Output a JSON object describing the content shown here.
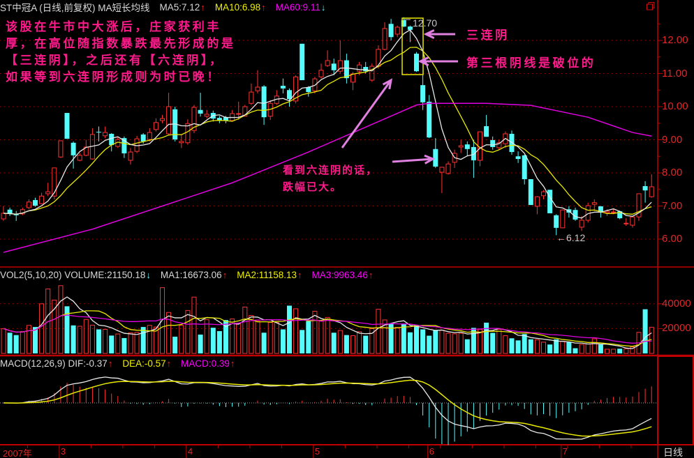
{
  "header": {
    "title": "ST中冠A (日线,前复权) MA短长均线",
    "ma5": "MA5:7.12",
    "ma5_arrow": "↑",
    "ma10": "MA10:6.98",
    "ma10_arrow": "↑",
    "ma60": "MA60:9.11",
    "ma60_arrow": "↓"
  },
  "volume_header": {
    "title": "VOL2(5,10,20) VOLUME:21150.18",
    "title_arrow": "↓",
    "ma1": "MA1:16673.06",
    "ma1_arrow": "↑",
    "ma2": "MA2:11158.13",
    "ma2_arrow": "↑",
    "ma3": "MA3:9963.46",
    "ma3_arrow": "↑"
  },
  "macd_header": {
    "title": "MACD(12,26,9) DIF:-0.37",
    "title_arrow": "↑",
    "dea": "DEA:-0.57",
    "dea_arrow": "↑",
    "macd": "MACD:0.39",
    "macd_arrow": "↑"
  },
  "annotations": {
    "intro": [
      "该股在牛市中大涨后，庄家获利丰",
      "厚，在高位随指数暴跌最先形成的是",
      "【三连阴】，之后还有【六连阴】，",
      "如果等到六连阴形成则为时已晚！"
    ],
    "three_black": "三连阴",
    "third_break": "第三根阴线是破位的",
    "six_black": [
      "看到六连阴的话，",
      "跌幅已大。"
    ],
    "high_marker": "12.70",
    "low_marker": "←6.12"
  },
  "footer": {
    "period": "日线"
  },
  "colors": {
    "up": "#ff3232",
    "down": "#54fcfc",
    "ma5": "#e8e8e8",
    "ma10": "#e8e800",
    "ma60": "#e000e0",
    "axis": "#c00000",
    "annotation": "#ff1a8c",
    "arrow": "#e080e0",
    "box": "#e8e800"
  },
  "chart_data": [
    {
      "type": "candlestick",
      "panel": "price",
      "y_ticks": [
        "6.00",
        "7.00",
        "8.00",
        "9.00",
        "10.00",
        "11.00",
        "12.00"
      ],
      "ylim": [
        5.5,
        13.2
      ],
      "grid": true,
      "x_ticks": [
        {
          "label": "2007年",
          "index": 0
        },
        {
          "label": "3",
          "index": 9
        },
        {
          "label": "4",
          "index": 29
        },
        {
          "label": "5",
          "index": 49
        },
        {
          "label": "6",
          "index": 67
        },
        {
          "label": "7",
          "index": 88
        }
      ],
      "ohlc": [
        [
          6.61,
          7.0,
          6.55,
          6.78
        ],
        [
          6.89,
          6.95,
          6.7,
          6.76
        ],
        [
          6.75,
          6.85,
          6.55,
          6.72
        ],
        [
          6.76,
          6.95,
          6.72,
          6.89
        ],
        [
          6.95,
          7.2,
          6.9,
          7.12
        ],
        [
          7.18,
          7.25,
          6.98,
          7.01
        ],
        [
          7.07,
          7.4,
          7.05,
          7.3
        ],
        [
          7.37,
          7.7,
          7.3,
          7.43
        ],
        [
          7.3,
          8.15,
          7.2,
          8.15
        ],
        [
          8.48,
          8.97,
          8.45,
          8.97
        ],
        [
          9.81,
          9.81,
          9.03,
          9.03
        ],
        [
          8.91,
          8.95,
          8.13,
          8.53
        ],
        [
          8.38,
          8.6,
          8.35,
          8.53
        ],
        [
          8.53,
          9.0,
          8.5,
          8.78
        ],
        [
          8.42,
          9.35,
          8.4,
          9.16
        ],
        [
          9.24,
          9.4,
          8.95,
          9.22
        ],
        [
          9.12,
          9.4,
          9.05,
          9.22
        ],
        [
          9.18,
          9.2,
          8.65,
          8.84
        ],
        [
          8.8,
          9.1,
          8.75,
          9.01
        ],
        [
          9.05,
          9.1,
          8.45,
          8.59
        ],
        [
          8.38,
          8.75,
          8.25,
          8.63
        ],
        [
          8.65,
          9.12,
          8.6,
          9.03
        ],
        [
          9.16,
          9.2,
          8.88,
          8.95
        ],
        [
          9.01,
          9.35,
          8.95,
          9.22
        ],
        [
          9.31,
          9.65,
          9.25,
          9.52
        ],
        [
          9.58,
          9.75,
          9.5,
          9.64
        ],
        [
          9.18,
          10.42,
          9.15,
          10.0
        ],
        [
          9.92,
          10.0,
          8.95,
          9.01
        ],
        [
          8.91,
          9.15,
          8.75,
          8.95
        ],
        [
          8.91,
          9.62,
          8.85,
          9.49
        ],
        [
          9.28,
          10.05,
          9.2,
          9.98
        ],
        [
          9.9,
          10.42,
          9.7,
          9.79
        ],
        [
          9.71,
          9.9,
          9.65,
          9.77
        ],
        [
          9.81,
          9.88,
          9.55,
          9.64
        ],
        [
          9.66,
          9.72,
          9.5,
          9.58
        ],
        [
          9.68,
          9.72,
          9.5,
          9.58
        ],
        [
          9.58,
          9.9,
          9.55,
          9.79
        ],
        [
          9.77,
          10.15,
          9.6,
          9.79
        ],
        [
          9.71,
          10.05,
          9.7,
          10.0
        ],
        [
          10.1,
          10.7,
          10.05,
          10.44
        ],
        [
          10.48,
          11.1,
          10.4,
          10.59
        ],
        [
          10.61,
          10.65,
          9.45,
          9.68
        ],
        [
          9.71,
          10.2,
          9.6,
          10.1
        ],
        [
          10.1,
          10.5,
          10.05,
          10.32
        ],
        [
          10.63,
          10.85,
          10.4,
          10.55
        ],
        [
          10.5,
          10.55,
          10.0,
          10.23
        ],
        [
          10.17,
          10.95,
          10.1,
          10.9
        ],
        [
          11.9,
          11.9,
          10.8,
          10.8
        ],
        [
          10.59,
          10.62,
          10.3,
          10.44
        ],
        [
          10.48,
          10.9,
          10.4,
          10.84
        ],
        [
          10.9,
          11.3,
          10.85,
          11.1
        ],
        [
          11.24,
          11.7,
          11.2,
          11.39
        ],
        [
          11.3,
          11.45,
          10.95,
          11.1
        ],
        [
          11.07,
          12.0,
          11.0,
          11.39
        ],
        [
          11.4,
          11.6,
          10.7,
          10.86
        ],
        [
          10.74,
          11.05,
          10.5,
          10.99
        ],
        [
          11.07,
          11.35,
          10.95,
          11.26
        ],
        [
          11.2,
          11.35,
          11.0,
          11.07
        ],
        [
          10.8,
          11.3,
          10.75,
          11.22
        ],
        [
          11.22,
          11.85,
          11.15,
          11.73
        ],
        [
          11.73,
          12.55,
          11.7,
          12.36
        ],
        [
          12.5,
          12.65,
          12.0,
          12.1
        ],
        [
          12.19,
          12.45,
          12.1,
          12.4
        ],
        [
          12.61,
          12.7,
          12.4,
          12.42
        ],
        [
          12.42,
          12.45,
          11.95,
          12.32
        ],
        [
          11.6,
          11.65,
          11.05,
          11.07
        ],
        [
          10.65,
          10.95,
          9.9,
          10.13
        ],
        [
          10.15,
          10.35,
          9.05,
          9.07
        ],
        [
          8.72,
          9.05,
          8.15,
          8.19
        ],
        [
          8.02,
          8.17,
          7.39,
          8.17
        ],
        [
          7.98,
          8.35,
          7.95,
          8.27
        ],
        [
          8.32,
          8.7,
          8.15,
          8.59
        ],
        [
          8.78,
          9.0,
          8.6,
          8.82
        ],
        [
          8.86,
          8.95,
          8.5,
          8.72
        ],
        [
          8.78,
          9.0,
          7.85,
          8.38
        ],
        [
          8.38,
          9.24,
          8.2,
          9.24
        ],
        [
          9.41,
          9.75,
          9.09,
          9.09
        ],
        [
          8.99,
          9.1,
          8.7,
          8.78
        ],
        [
          8.76,
          9.0,
          8.7,
          8.91
        ],
        [
          8.88,
          9.25,
          8.75,
          9.18
        ],
        [
          9.18,
          9.28,
          8.55,
          8.63
        ],
        [
          8.5,
          8.65,
          8.3,
          8.42
        ],
        [
          8.53,
          8.55,
          7.65,
          7.81
        ],
        [
          7.81,
          7.81,
          7.03,
          7.03
        ],
        [
          6.99,
          7.3,
          6.75,
          7.28
        ],
        [
          7.31,
          7.48,
          7.2,
          7.43
        ],
        [
          7.49,
          7.49,
          6.78,
          6.78
        ],
        [
          6.72,
          6.75,
          6.12,
          6.34
        ],
        [
          6.34,
          6.9,
          6.34,
          6.88
        ],
        [
          6.9,
          7.0,
          6.65,
          6.8
        ],
        [
          6.88,
          6.95,
          6.55,
          6.59
        ],
        [
          6.36,
          6.7,
          6.25,
          6.57
        ],
        [
          6.57,
          7.1,
          6.5,
          7.01
        ],
        [
          7.05,
          7.2,
          6.85,
          7.1
        ],
        [
          6.99,
          7.0,
          6.65,
          6.8
        ],
        [
          6.8,
          6.9,
          6.7,
          6.84
        ],
        [
          6.82,
          6.9,
          6.75,
          6.82
        ],
        [
          6.84,
          6.86,
          6.6,
          6.63
        ],
        [
          6.46,
          6.63,
          6.4,
          6.48
        ],
        [
          6.42,
          6.7,
          6.35,
          6.67
        ],
        [
          6.67,
          7.37,
          6.55,
          7.37
        ],
        [
          7.6,
          7.75,
          7.1,
          7.47
        ],
        [
          7.28,
          7.96,
          7.25,
          7.58
        ]
      ],
      "series": [
        {
          "name": "MA5",
          "period": 5
        },
        {
          "name": "MA10",
          "period": 10
        },
        {
          "name": "MA60",
          "points": [
            [
              0,
              5.6
            ],
            [
              14,
              6.3
            ],
            [
              36,
              7.7
            ],
            [
              48,
              8.63
            ],
            [
              65,
              10.05
            ],
            [
              67,
              10.1
            ],
            [
              76,
              10.1
            ],
            [
              83,
              10.04
            ],
            [
              92,
              9.68
            ],
            [
              99,
              9.22
            ],
            [
              102,
              9.11
            ]
          ]
        }
      ]
    },
    {
      "type": "bar",
      "panel": "volume",
      "y_ticks": [
        "20000",
        "40000"
      ],
      "grid": true,
      "values": [
        20000,
        16700,
        14800,
        17600,
        22600,
        21300,
        40000,
        52000,
        43000,
        54600,
        38000,
        22600,
        21900,
        27400,
        22800,
        19400,
        19400,
        14400,
        15700,
        12400,
        16700,
        17000,
        21300,
        22600,
        21300,
        53000,
        33000,
        13500,
        22600,
        34600,
        45400,
        15200,
        27200,
        20700,
        18000,
        26900,
        27800,
        24400,
        37400,
        30600,
        26000,
        16700,
        25000,
        25000,
        19400,
        38500,
        36000,
        18900,
        26000,
        34000,
        26000,
        29000,
        16700,
        18500,
        14800,
        14300,
        17500,
        14300,
        20000,
        35600,
        27000,
        24200,
        21000,
        24000,
        17000,
        22800,
        19400,
        14300,
        19000,
        18700,
        16200,
        15800,
        16200,
        11400,
        20600,
        19400,
        24800,
        16600,
        19400,
        14300,
        12200,
        10500,
        15600,
        11400,
        11000,
        9100,
        7200,
        11400,
        9900,
        9100,
        4200,
        7200,
        7600,
        11800,
        7200,
        3400,
        3400,
        3800,
        3800,
        5300,
        17000,
        35600,
        21150.18
      ],
      "series": [
        {
          "name": "MA1",
          "period": 5
        },
        {
          "name": "MA2",
          "period": 10
        },
        {
          "name": "MA3",
          "period": 20
        }
      ]
    },
    {
      "type": "line",
      "panel": "macd",
      "params": [
        12,
        26,
        9
      ],
      "series": [
        {
          "name": "DIF"
        },
        {
          "name": "DEA"
        },
        {
          "name": "MACD"
        }
      ]
    }
  ]
}
